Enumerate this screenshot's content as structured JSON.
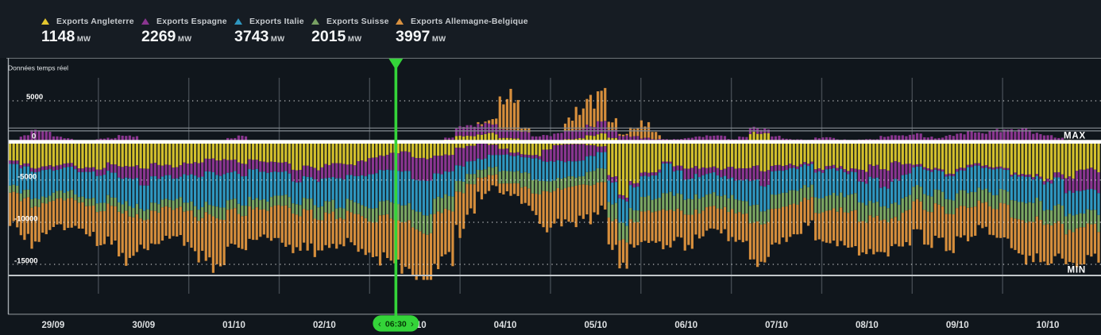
{
  "legend": {
    "items": [
      {
        "label": "Exports Angleterre",
        "value": "1148",
        "unit": "MW",
        "color": "#e3c72f"
      },
      {
        "label": "Exports Espagne",
        "value": "2269",
        "unit": "MW",
        "color": "#8a3590"
      },
      {
        "label": "Exports Italie",
        "value": "3743",
        "unit": "MW",
        "color": "#2f97c0"
      },
      {
        "label": "Exports Suisse",
        "value": "2015",
        "unit": "MW",
        "color": "#78a163"
      },
      {
        "label": "Exports Allemagne-Belgique",
        "value": "3997",
        "unit": "MW",
        "color": "#d99140"
      }
    ]
  },
  "chart": {
    "realtime_label": "Données temps réel",
    "max_label": "MAX",
    "min_label": "MIN",
    "cursor": {
      "time": "06:30",
      "prev": "‹",
      "next": "›",
      "day": "03/10",
      "color": "#34d439"
    },
    "y_ticks": [
      "5000",
      "0",
      "-5000",
      "-10000",
      "-15000"
    ],
    "x_ticks": [
      "29/09",
      "30/09",
      "01/10",
      "02/10",
      "03/10",
      "04/10",
      "05/10",
      "06/10",
      "07/10",
      "08/10",
      "09/10",
      "10/10"
    ]
  },
  "chart_data": {
    "type": "bar-stacked-diverging",
    "unit": "MW",
    "sampling": "one control value every 6 hours from 29/09 00:00, exports drawn below the zero line, imports above",
    "days": [
      "29/09",
      "30/09",
      "01/10",
      "02/10",
      "03/10",
      "04/10",
      "05/10",
      "06/10",
      "07/10",
      "08/10",
      "09/10",
      "10/10"
    ],
    "y_axis_range": [
      -16500,
      6500
    ],
    "max_line_mw": 1500,
    "min_line_mw": -15800,
    "series": [
      {
        "name": "Exports Angleterre",
        "color": "#d3c02c",
        "export_mw": [
          2600,
          2800,
          2700,
          2600,
          2800,
          3000,
          2900,
          2700,
          2500,
          2300,
          2200,
          2400,
          2600,
          2900,
          3000,
          2700,
          2000,
          1148,
          1900,
          2000,
          500,
          200,
          1200,
          2000,
          400,
          300,
          600,
          7200,
          3400,
          2600,
          2800,
          3000,
          3000,
          3400,
          3000,
          2800,
          2800,
          3200,
          3000,
          2800,
          2900,
          3300,
          3100,
          2900,
          3300,
          4000,
          4200,
          3600,
          3400,
          3400
        ],
        "import_mw": [
          0,
          0,
          0,
          0,
          0,
          0,
          0,
          0,
          0,
          0,
          0,
          0,
          0,
          0,
          0,
          0,
          0,
          0,
          0,
          150,
          700,
          900,
          500,
          100,
          100,
          400,
          1000,
          150,
          0,
          0,
          0,
          0,
          0,
          1100,
          0,
          0,
          0,
          0,
          0,
          0,
          0,
          0,
          0,
          0,
          0,
          0,
          0,
          0,
          0,
          0
        ]
      },
      {
        "name": "Exports Espagne",
        "color": "#8a3590",
        "export_mw": [
          450,
          400,
          500,
          450,
          700,
          1600,
          1900,
          1100,
          1500,
          1700,
          1400,
          1100,
          1200,
          1500,
          1700,
          1400,
          1900,
          2269,
          2300,
          2100,
          2000,
          1500,
          400,
          300,
          1800,
          2000,
          800,
          400,
          400,
          200,
          1200,
          700,
          1300,
          1900,
          600,
          300,
          400,
          300,
          1700,
          2100,
          300,
          200,
          300,
          250,
          200,
          250,
          400,
          2100,
          2400,
          2400
        ],
        "import_mw": [
          0,
          1600,
          600,
          0,
          400,
          800,
          0,
          0,
          0,
          0,
          700,
          0,
          0,
          0,
          0,
          0,
          0,
          0,
          0,
          0,
          1200,
          1200,
          900,
          800,
          800,
          1200,
          1500,
          800,
          400,
          250,
          600,
          800,
          300,
          700,
          400,
          200,
          500,
          200,
          300,
          800,
          900,
          600,
          1100,
          1300,
          1200,
          1400,
          800,
          0,
          0,
          0
        ]
      },
      {
        "name": "Exports Italie",
        "color": "#2f97c0",
        "export_mw": [
          2800,
          2900,
          2850,
          2700,
          3100,
          3400,
          3100,
          2700,
          3300,
          3500,
          3200,
          2900,
          2900,
          3100,
          3200,
          3000,
          3600,
          3743,
          3500,
          3000,
          1500,
          1200,
          1800,
          2200,
          2100,
          1700,
          2200,
          2600,
          2800,
          3000,
          2700,
          2400,
          2600,
          2800,
          2600,
          2400,
          2800,
          3000,
          2800,
          2600,
          2600,
          2800,
          2700,
          2500,
          2800,
          3000,
          2900,
          2700,
          2800,
          2800
        ],
        "import_mw": null
      },
      {
        "name": "Exports Suisse",
        "color": "#7aa662",
        "export_mw": [
          800,
          900,
          850,
          750,
          950,
          1100,
          1000,
          900,
          1100,
          1300,
          1200,
          1050,
          1150,
          1350,
          1400,
          1250,
          1900,
          2015,
          2000,
          1800,
          1200,
          900,
          1500,
          1750,
          1300,
          1100,
          1600,
          1800,
          1500,
          1800,
          1650,
          1450,
          1600,
          1900,
          1750,
          1550,
          1700,
          2000,
          1850,
          1650,
          1700,
          1900,
          1800,
          1650,
          1800,
          2100,
          1950,
          1800,
          1900,
          1900
        ],
        "import_mw": null
      },
      {
        "name": "Exports Allemagne-Belgique",
        "color": "#d68e3c",
        "export_mw": [
          3200,
          3800,
          3100,
          2700,
          3400,
          4000,
          3300,
          2900,
          3600,
          4200,
          3500,
          3100,
          3400,
          3900,
          3700,
          3300,
          3900,
          3997,
          4200,
          4600,
          3000,
          800,
          900,
          1800,
          3000,
          2800,
          2600,
          2900,
          2900,
          3300,
          3100,
          2700,
          3100,
          3500,
          3300,
          2900,
          3100,
          3700,
          3500,
          3100,
          3300,
          3700,
          3500,
          3100,
          3500,
          3900,
          3700,
          3500,
          3600,
          3600
        ],
        "import_mw": [
          0,
          0,
          0,
          0,
          0,
          0,
          0,
          0,
          0,
          0,
          0,
          0,
          0,
          0,
          0,
          0,
          0,
          0,
          0,
          0,
          0,
          1200,
          6300,
          500,
          300,
          4800,
          5200,
          1200,
          3800,
          0,
          0,
          0,
          0,
          0,
          0,
          0,
          0,
          0,
          0,
          0,
          0,
          0,
          0,
          0,
          0,
          0,
          0,
          800,
          1000,
          1000
        ],
        "export_ragged_extra_mw": [
          2400,
          3400,
          1500,
          900,
          2100,
          3400,
          1300,
          900,
          2400,
          3900,
          1500,
          900,
          2100,
          3400,
          1200,
          2200,
          2600,
          3000,
          3800,
          5600,
          5200,
          2500,
          600,
          1500,
          8000,
          7000,
          1600,
          1300,
          1800,
          2600,
          1400,
          1100,
          1600,
          2400,
          1300,
          1000,
          1400,
          2200,
          1200,
          900,
          1300,
          2000,
          1200,
          900,
          1400,
          2100,
          1300,
          1100,
          1200,
          1200
        ]
      }
    ]
  }
}
